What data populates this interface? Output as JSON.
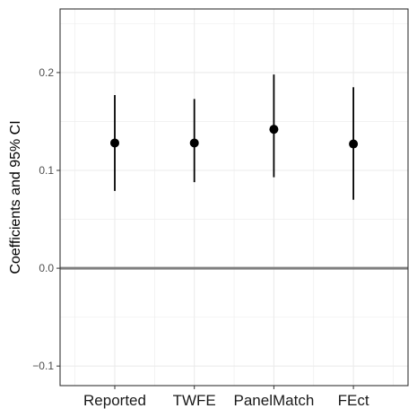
{
  "chart_data": {
    "type": "scatter",
    "title": "",
    "xlabel": "",
    "ylabel": "Coefficients and 95% CI",
    "categories": [
      "Reported",
      "TWFE",
      "PanelMatch",
      "FEct"
    ],
    "series": [
      {
        "values": [
          0.128,
          0.128,
          0.142,
          0.127
        ],
        "ci_lower": [
          0.079,
          0.088,
          0.093,
          0.07
        ],
        "ci_upper": [
          0.177,
          0.173,
          0.198,
          0.185
        ]
      }
    ],
    "ylim": [
      -0.12,
      0.265
    ],
    "y_ticks": [
      -0.1,
      0.0,
      0.1,
      0.2
    ],
    "y_tick_labels": [
      "−0.1",
      "0.0",
      "0.1",
      "0.2"
    ],
    "reference_line": 0.0,
    "grid": true,
    "legend": "none",
    "colors": {
      "point": "#000000",
      "reference_line": "#7f7f7f",
      "grid": "#ebebeb",
      "panel_border": "#333333"
    }
  }
}
